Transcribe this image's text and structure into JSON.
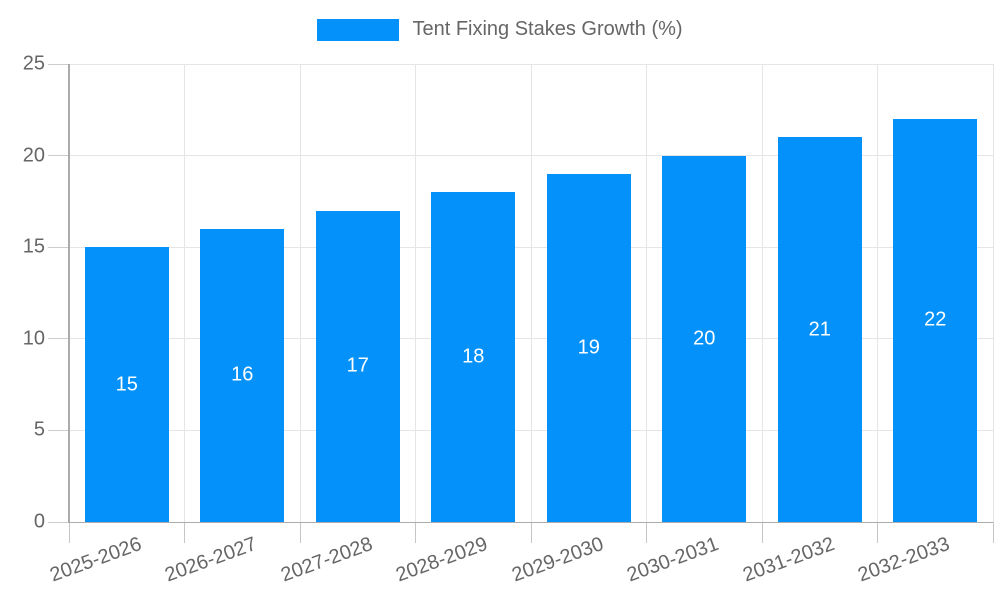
{
  "legend": {
    "label": "Tent Fixing Stakes Growth (%)"
  },
  "chart_data": {
    "type": "bar",
    "title": "",
    "series_name": "Tent Fixing Stakes Growth (%)",
    "categories": [
      "2025-2026",
      "2026-2027",
      "2027-2028",
      "2028-2029",
      "2029-2030",
      "2030-2031",
      "2031-2032",
      "2032-2033"
    ],
    "values": [
      15,
      16,
      17,
      18,
      19,
      20,
      21,
      22
    ],
    "data_labels": [
      "15",
      "16",
      "17",
      "18",
      "19",
      "20",
      "21",
      "22"
    ],
    "xlabel": "",
    "ylabel": "",
    "ylim": [
      0,
      25
    ],
    "yticks": [
      0,
      5,
      10,
      15,
      20,
      25
    ],
    "grid": true,
    "legend_position": "top",
    "colors": {
      "bar": "#0591fa",
      "bar_label": "#ffffff",
      "axis_text": "#666666",
      "gridline": "#e5e5e5",
      "axis_line": "#ababab",
      "tick": "#c9c9c9",
      "background": "#ffffff"
    }
  }
}
